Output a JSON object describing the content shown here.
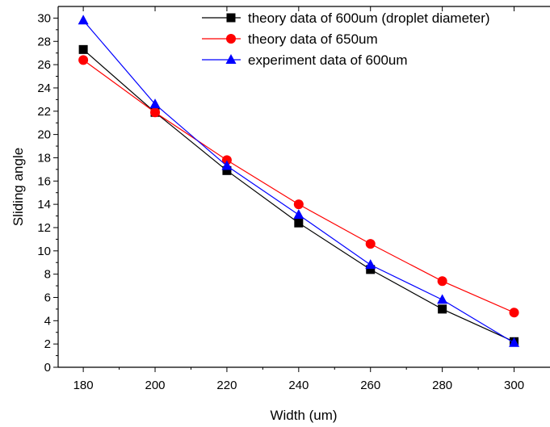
{
  "chart_data": {
    "type": "line",
    "title": "",
    "xlabel": "Width (um)",
    "ylabel": "Sliding angle",
    "xlim": [
      173,
      310
    ],
    "ylim": [
      0,
      31
    ],
    "x": [
      180,
      200,
      220,
      240,
      260,
      280,
      300
    ],
    "x_ticks": [
      180,
      200,
      220,
      240,
      260,
      280,
      300
    ],
    "y_ticks": [
      0,
      2,
      4,
      6,
      8,
      10,
      12,
      14,
      16,
      18,
      20,
      22,
      24,
      26,
      28,
      30
    ],
    "legend_position": "top-right",
    "grid": false,
    "series": [
      {
        "name": "theory data of 600um (droplet diameter)",
        "color": "#000000",
        "marker": "square",
        "values": [
          27.3,
          21.9,
          16.9,
          12.4,
          8.4,
          5.0,
          2.2
        ]
      },
      {
        "name": "theory data of 650um",
        "color": "#ff0000",
        "marker": "circle",
        "values": [
          26.4,
          21.9,
          17.8,
          14.0,
          10.6,
          7.4,
          4.7
        ]
      },
      {
        "name": "experiment data of 600um",
        "color": "#0000ff",
        "marker": "triangle",
        "values": [
          29.8,
          22.6,
          17.3,
          13.1,
          8.8,
          5.8,
          2.1
        ]
      }
    ]
  }
}
